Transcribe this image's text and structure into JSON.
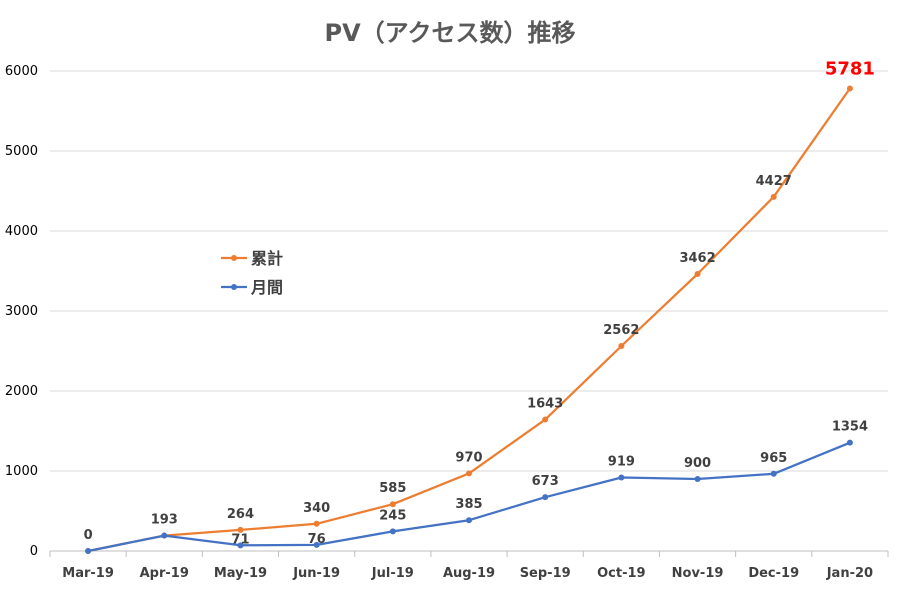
{
  "chart_data": {
    "type": "line",
    "title": "PV（アクセス数）推移",
    "categories": [
      "Mar-19",
      "Apr-19",
      "May-19",
      "Jun-19",
      "Jul-19",
      "Aug-19",
      "Sep-19",
      "Oct-19",
      "Nov-19",
      "Dec-19",
      "Jan-20"
    ],
    "series": [
      {
        "name": "累計",
        "color": "#ed7d31",
        "values": [
          0,
          193,
          264,
          340,
          585,
          970,
          1643,
          2562,
          3462,
          4427,
          5781
        ]
      },
      {
        "name": "月間",
        "color": "#4472c4",
        "values": [
          0,
          193,
          71,
          76,
          245,
          385,
          673,
          919,
          900,
          965,
          1354
        ]
      }
    ],
    "ylim": [
      0,
      6000
    ],
    "yticks": [
      0,
      1000,
      2000,
      3000,
      4000,
      5000,
      6000
    ],
    "grid": true,
    "legend": "left",
    "highlight": {
      "value": "5781",
      "color": "#ff0000"
    }
  }
}
